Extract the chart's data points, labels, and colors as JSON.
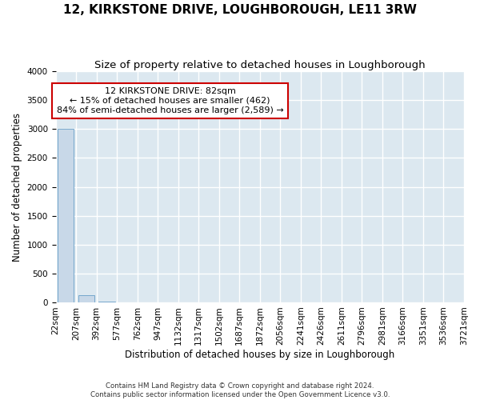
{
  "title": "12, KIRKSTONE DRIVE, LOUGHBOROUGH, LE11 3RW",
  "subtitle": "Size of property relative to detached houses in Loughborough",
  "xlabel": "Distribution of detached houses by size in Loughborough",
  "ylabel": "Number of detached properties",
  "annotation_line1": "12 KIRKSTONE DRIVE: 82sqm",
  "annotation_line2": "← 15% of detached houses are smaller (462)",
  "annotation_line3": "84% of semi-detached houses are larger (2,589) →",
  "footer_line1": "Contains HM Land Registry data © Crown copyright and database right 2024.",
  "footer_line2": "Contains public sector information licensed under the Open Government Licence v3.0.",
  "bin_labels": [
    "22sqm",
    "207sqm",
    "392sqm",
    "577sqm",
    "762sqm",
    "947sqm",
    "1132sqm",
    "1317sqm",
    "1502sqm",
    "1687sqm",
    "1872sqm",
    "2056sqm",
    "2241sqm",
    "2426sqm",
    "2611sqm",
    "2796sqm",
    "2981sqm",
    "3166sqm",
    "3351sqm",
    "3536sqm",
    "3721sqm"
  ],
  "bar_heights": [
    3000,
    120,
    5,
    2,
    1,
    1,
    0,
    0,
    0,
    0,
    0,
    0,
    0,
    0,
    0,
    0,
    0,
    0,
    0,
    0
  ],
  "bar_color": "#c8d8e8",
  "bar_edge_color": "#5090c0",
  "ylim": [
    0,
    4000
  ],
  "yticks": [
    0,
    500,
    1000,
    1500,
    2000,
    2500,
    3000,
    3500,
    4000
  ],
  "axes_face_color": "#dce8f0",
  "grid_color": "#ffffff",
  "annotation_box_color": "#ffffff",
  "annotation_box_edge_color": "#cc0000",
  "title_fontsize": 11,
  "subtitle_fontsize": 9.5,
  "axis_label_fontsize": 8.5,
  "tick_fontsize": 7.5,
  "annotation_fontsize": 8
}
